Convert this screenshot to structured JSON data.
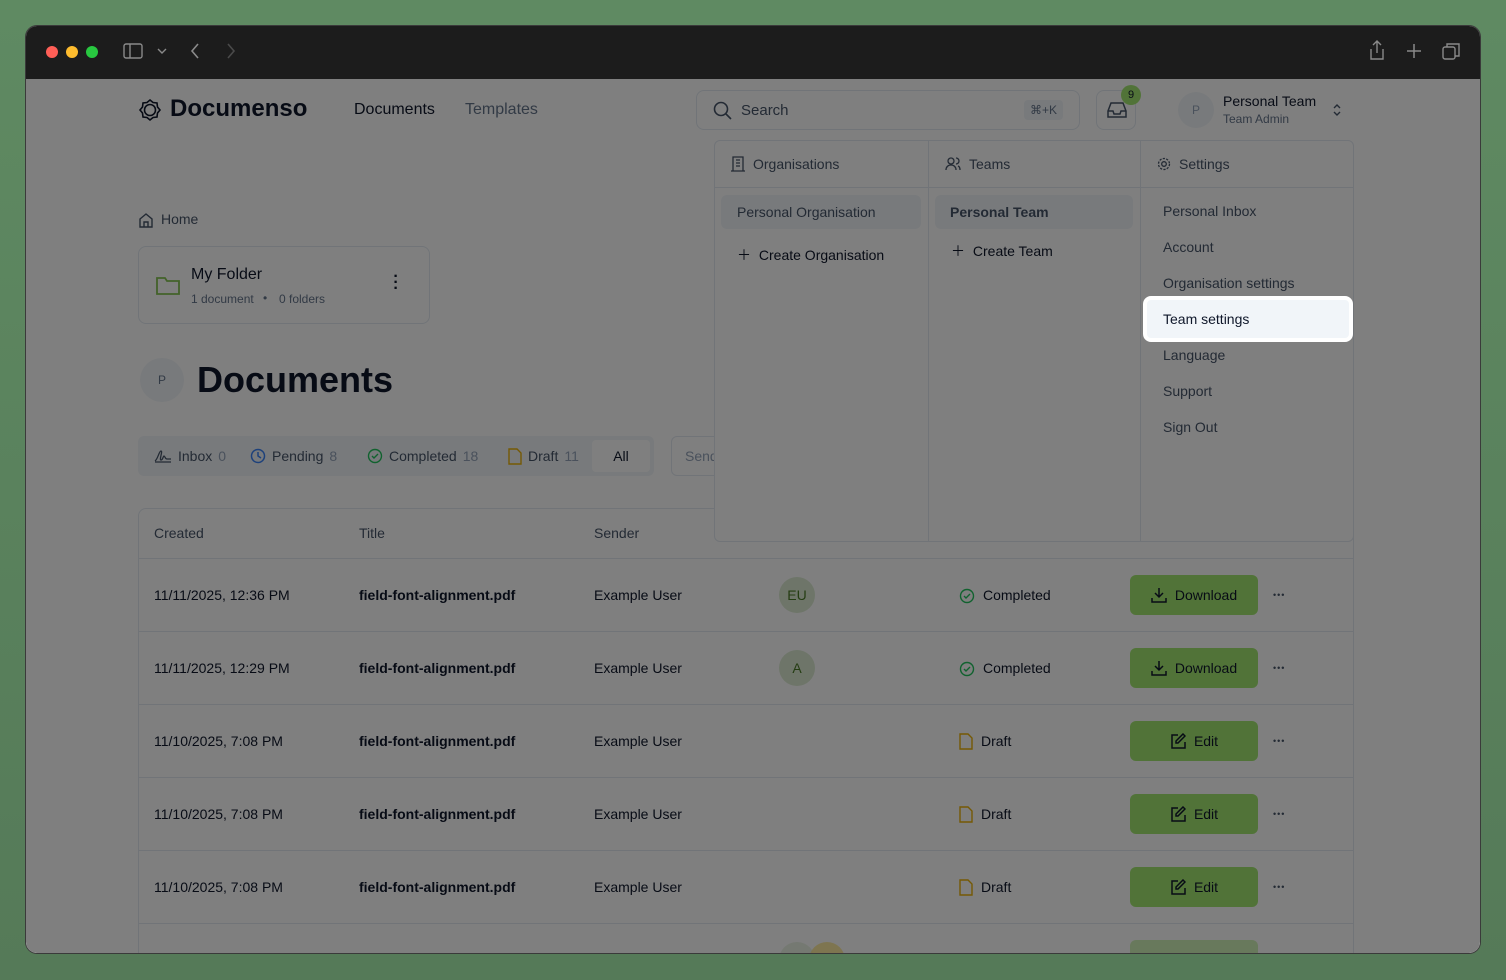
{
  "window": {
    "traffic_colors": [
      "#ff5f57",
      "#febc2e",
      "#28c840"
    ]
  },
  "header": {
    "brand": "Documenso",
    "nav": [
      "Documents",
      "Templates"
    ],
    "search_placeholder": "Search",
    "search_shortcut": "⌘+K",
    "inbox_badge": "9",
    "team_initial": "P",
    "team_name": "Personal Team",
    "team_role": "Team Admin"
  },
  "breadcrumb": {
    "home": "Home"
  },
  "folder": {
    "name": "My Folder",
    "documents": "1 document",
    "folders": "0 folders"
  },
  "page": {
    "avatar": "P",
    "title": "Documents"
  },
  "tabs": [
    {
      "label": "Inbox",
      "count": "0"
    },
    {
      "label": "Pending",
      "count": "8"
    },
    {
      "label": "Completed",
      "count": "18"
    },
    {
      "label": "Draft",
      "count": "11"
    },
    {
      "label": "All",
      "count": ""
    }
  ],
  "sender_filter_placeholder": "Send",
  "table": {
    "headers": [
      "Created",
      "Title",
      "Sender"
    ],
    "rows": [
      {
        "created": "11/11/2025, 12:36 PM",
        "title": "field-font-alignment.pdf",
        "sender": "Example User",
        "recipient": "EU",
        "status": "Completed",
        "action": "Download"
      },
      {
        "created": "11/11/2025, 12:29 PM",
        "title": "field-font-alignment.pdf",
        "sender": "Example User",
        "recipient": "A",
        "status": "Completed",
        "action": "Download"
      },
      {
        "created": "11/10/2025, 7:08 PM",
        "title": "field-font-alignment.pdf",
        "sender": "Example User",
        "recipient": "",
        "status": "Draft",
        "action": "Edit"
      },
      {
        "created": "11/10/2025, 7:08 PM",
        "title": "field-font-alignment.pdf",
        "sender": "Example User",
        "recipient": "",
        "status": "Draft",
        "action": "Edit"
      },
      {
        "created": "11/10/2025, 7:08 PM",
        "title": "field-font-alignment.pdf",
        "sender": "Example User",
        "recipient": "",
        "status": "Draft",
        "action": "Edit"
      }
    ]
  },
  "dropdown": {
    "organisations": {
      "title": "Organisations",
      "items": [
        "Personal Organisation"
      ],
      "create": "Create Organisation"
    },
    "teams": {
      "title": "Teams",
      "items": [
        "Personal Team"
      ],
      "create": "Create Team"
    },
    "settings": {
      "title": "Settings",
      "items": [
        "Personal Inbox",
        "Account",
        "Organisation settings",
        "Team settings",
        "Language",
        "Support",
        "Sign Out"
      ]
    }
  }
}
